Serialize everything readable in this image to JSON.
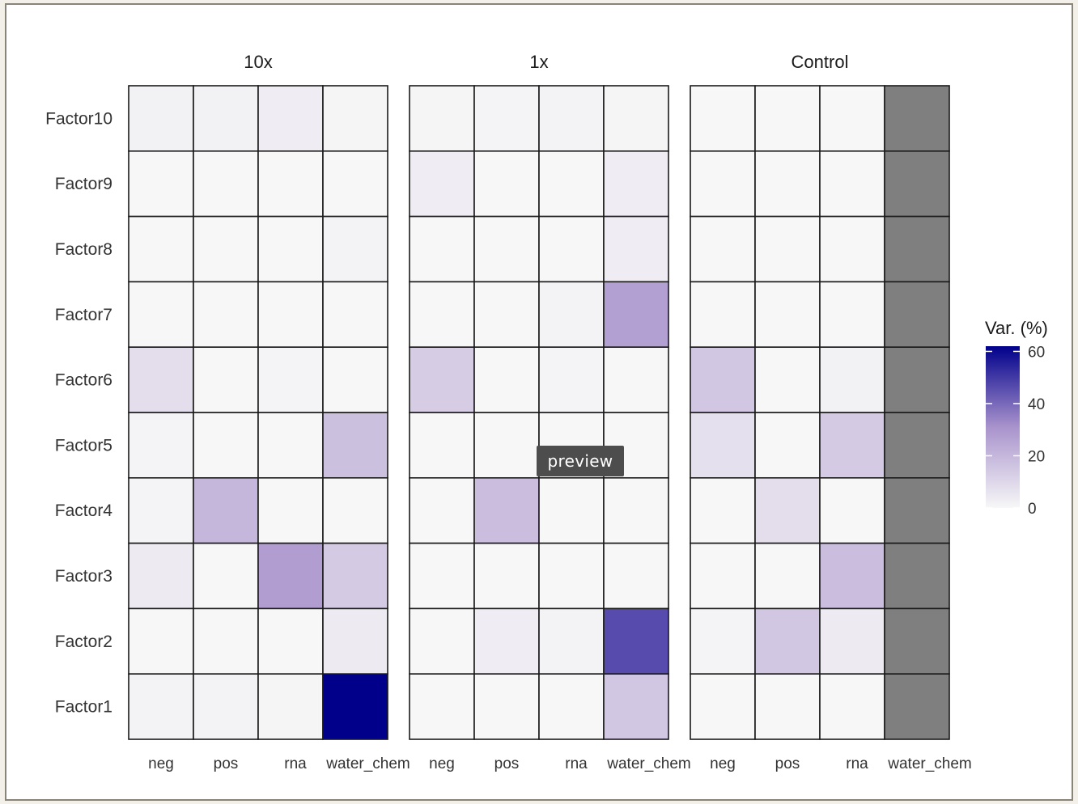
{
  "chart_data": {
    "type": "heatmap",
    "panels": [
      "10x",
      "1x",
      "Control"
    ],
    "x_categories": [
      "neg",
      "pos",
      "rna",
      "water_chem"
    ],
    "y_categories": [
      "Factor10",
      "Factor9",
      "Factor8",
      "Factor7",
      "Factor6",
      "Factor5",
      "Factor4",
      "Factor3",
      "Factor2",
      "Factor1"
    ],
    "values": {
      "10x": [
        [
          2,
          2,
          3,
          0.5
        ],
        [
          0,
          0,
          0,
          0
        ],
        [
          0,
          0,
          0,
          1.5
        ],
        [
          0,
          0,
          0,
          0
        ],
        [
          8,
          0,
          1,
          0
        ],
        [
          1,
          0,
          0,
          17
        ],
        [
          1,
          20,
          0,
          0
        ],
        [
          4,
          0,
          28,
          14
        ],
        [
          0,
          0,
          0,
          4
        ],
        [
          1.5,
          1.5,
          0.5,
          62
        ]
      ],
      "1x": [
        [
          0.5,
          1,
          1.5,
          0.5
        ],
        [
          3,
          0,
          0,
          3
        ],
        [
          0,
          0,
          0,
          3
        ],
        [
          0,
          0,
          1.5,
          27
        ],
        [
          13,
          0,
          1,
          0
        ],
        [
          0,
          0,
          0,
          0
        ],
        [
          0,
          18,
          0,
          0
        ],
        [
          0,
          0,
          0,
          0
        ],
        [
          0,
          3,
          1.5,
          46
        ],
        [
          0,
          0,
          0,
          15
        ]
      ],
      "Control": [
        [
          0,
          0,
          0,
          null
        ],
        [
          0,
          0,
          0,
          null
        ],
        [
          0,
          0,
          0,
          null
        ],
        [
          0,
          0,
          0,
          null
        ],
        [
          15,
          0,
          2,
          null
        ],
        [
          7,
          0,
          14,
          null
        ],
        [
          0,
          8,
          0,
          null
        ],
        [
          0,
          0,
          18,
          null
        ],
        [
          1,
          15,
          4,
          null
        ],
        [
          0,
          0,
          0,
          null
        ]
      ]
    },
    "na_color": "#7f7f7f",
    "color_scale": {
      "low": "#f7f7f7",
      "mid": "#a993cc",
      "high": "#00008b",
      "min": 0,
      "max": 62
    },
    "legend": {
      "title": "Var. (%)",
      "ticks": [
        0,
        20,
        40,
        60
      ],
      "position": "right"
    }
  },
  "tooltip": {
    "label": "preview"
  }
}
